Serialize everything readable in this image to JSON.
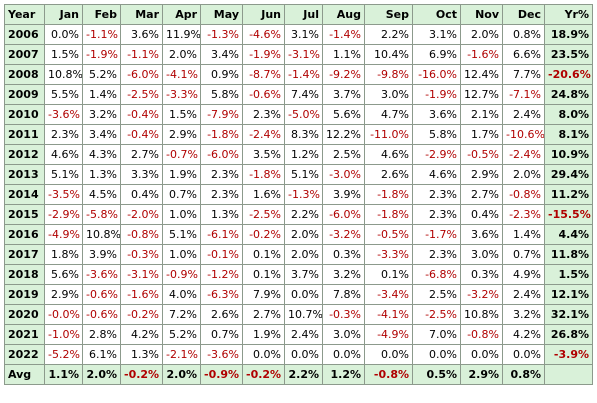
{
  "headers": [
    "Year",
    "Jan",
    "Feb",
    "Mar",
    "Apr",
    "May",
    "Jun",
    "Jul",
    "Aug",
    "Sep",
    "Oct",
    "Nov",
    "Dec",
    "Yr%"
  ],
  "rows": [
    {
      "year": "2006",
      "values": [
        "0.0%",
        "-1.1%",
        "3.6%",
        "11.9%",
        "-1.3%",
        "-4.6%",
        "3.1%",
        "-1.4%",
        "2.2%",
        "3.1%",
        "2.0%",
        "0.8%"
      ],
      "total": "18.9%"
    },
    {
      "year": "2007",
      "values": [
        "1.5%",
        "-1.9%",
        "-1.1%",
        "2.0%",
        "3.4%",
        "-1.9%",
        "-3.1%",
        "1.1%",
        "10.4%",
        "6.9%",
        "-1.6%",
        "6.6%"
      ],
      "total": "23.5%"
    },
    {
      "year": "2008",
      "values": [
        "10.8%",
        "5.2%",
        "-6.0%",
        "-4.1%",
        "0.9%",
        "-8.7%",
        "-1.4%",
        "-9.2%",
        "-9.8%",
        "-16.0%",
        "12.4%",
        "7.7%"
      ],
      "total": "-20.6%"
    },
    {
      "year": "2009",
      "values": [
        "5.5%",
        "1.4%",
        "-2.5%",
        "-3.3%",
        "5.8%",
        "-0.6%",
        "7.4%",
        "3.7%",
        "3.0%",
        "-1.9%",
        "12.7%",
        "-7.1%"
      ],
      "total": "24.8%"
    },
    {
      "year": "2010",
      "values": [
        "-3.6%",
        "3.2%",
        "-0.4%",
        "1.5%",
        "-7.9%",
        "2.3%",
        "-5.0%",
        "5.6%",
        "4.7%",
        "3.6%",
        "2.1%",
        "2.4%"
      ],
      "total": "8.0%"
    },
    {
      "year": "2011",
      "values": [
        "2.3%",
        "3.4%",
        "-0.4%",
        "2.9%",
        "-1.8%",
        "-2.4%",
        "8.3%",
        "12.2%",
        "-11.0%",
        "5.8%",
        "1.7%",
        "-10.6%"
      ],
      "total": "8.1%"
    },
    {
      "year": "2012",
      "values": [
        "4.6%",
        "4.3%",
        "2.7%",
        "-0.7%",
        "-6.0%",
        "3.5%",
        "1.2%",
        "2.5%",
        "4.6%",
        "-2.9%",
        "-0.5%",
        "-2.4%"
      ],
      "total": "10.9%"
    },
    {
      "year": "2013",
      "values": [
        "5.1%",
        "1.3%",
        "3.3%",
        "1.9%",
        "2.3%",
        "-1.8%",
        "5.1%",
        "-3.0%",
        "2.6%",
        "4.6%",
        "2.9%",
        "2.0%"
      ],
      "total": "29.4%"
    },
    {
      "year": "2014",
      "values": [
        "-3.5%",
        "4.5%",
        "0.4%",
        "0.7%",
        "2.3%",
        "1.6%",
        "-1.3%",
        "3.9%",
        "-1.8%",
        "2.3%",
        "2.7%",
        "-0.8%"
      ],
      "total": "11.2%"
    },
    {
      "year": "2015",
      "values": [
        "-2.9%",
        "-5.8%",
        "-2.0%",
        "1.0%",
        "1.3%",
        "-2.5%",
        "2.2%",
        "-6.0%",
        "-1.8%",
        "2.3%",
        "0.4%",
        "-2.3%"
      ],
      "total": "-15.5%"
    },
    {
      "year": "2016",
      "values": [
        "-4.9%",
        "10.8%",
        "-0.8%",
        "5.1%",
        "-6.1%",
        "-0.2%",
        "2.0%",
        "-3.2%",
        "-0.5%",
        "-1.7%",
        "3.6%",
        "1.4%"
      ],
      "total": "4.4%"
    },
    {
      "year": "2017",
      "values": [
        "1.8%",
        "3.9%",
        "-0.3%",
        "1.0%",
        "-0.1%",
        "0.1%",
        "2.0%",
        "0.3%",
        "-3.3%",
        "2.3%",
        "3.0%",
        "0.7%"
      ],
      "total": "11.8%"
    },
    {
      "year": "2018",
      "values": [
        "5.6%",
        "-3.6%",
        "-3.1%",
        "-0.9%",
        "-1.2%",
        "0.1%",
        "3.7%",
        "3.2%",
        "0.1%",
        "-6.8%",
        "0.3%",
        "4.9%"
      ],
      "total": "1.5%"
    },
    {
      "year": "2019",
      "values": [
        "2.9%",
        "-0.6%",
        "-1.6%",
        "4.0%",
        "-6.3%",
        "7.9%",
        "0.0%",
        "7.8%",
        "-3.4%",
        "2.5%",
        "-3.2%",
        "2.4%"
      ],
      "total": "12.1%"
    },
    {
      "year": "2020",
      "values": [
        "-0.0%",
        "-0.6%",
        "-0.2%",
        "7.2%",
        "2.6%",
        "2.7%",
        "10.7%",
        "-0.3%",
        "-4.1%",
        "-2.5%",
        "10.8%",
        "3.2%"
      ],
      "total": "32.1%"
    },
    {
      "year": "2021",
      "values": [
        "-1.0%",
        "2.8%",
        "4.2%",
        "5.2%",
        "0.7%",
        "1.9%",
        "2.4%",
        "3.0%",
        "-4.9%",
        "7.0%",
        "-0.8%",
        "4.2%"
      ],
      "total": "26.8%"
    },
    {
      "year": "2022",
      "values": [
        "-5.2%",
        "6.1%",
        "1.3%",
        "-2.1%",
        "-3.6%",
        "0.0%",
        "0.0%",
        "0.0%",
        "0.0%",
        "0.0%",
        "0.0%",
        "0.0%"
      ],
      "total": "-3.9%"
    }
  ],
  "avg": {
    "label": "Avg",
    "values": [
      "1.1%",
      "2.0%",
      "-0.2%",
      "2.0%",
      "-0.9%",
      "-0.2%",
      "2.2%",
      "1.2%",
      "-0.8%",
      "0.5%",
      "2.9%",
      "0.8%"
    ],
    "total": ""
  },
  "colors": {
    "header_bg": "#d9f1d9",
    "negative": "#b00000",
    "positive": "#000000",
    "border": "#8c9a8c"
  }
}
